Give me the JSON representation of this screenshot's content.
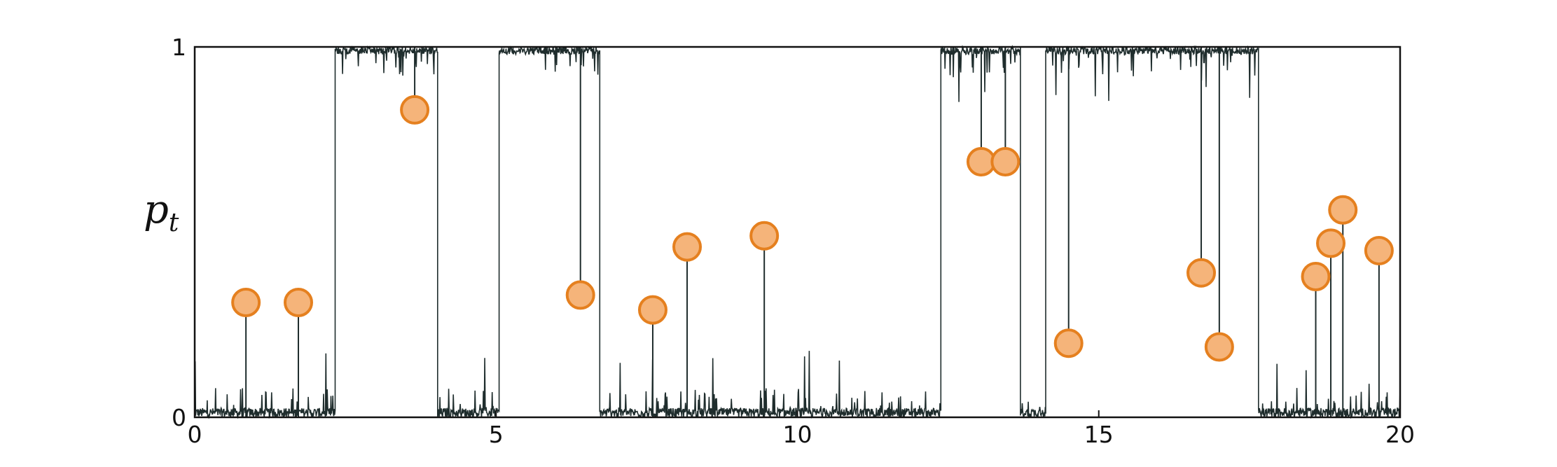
{
  "chart_data": {
    "type": "line",
    "title": "",
    "xlabel": "",
    "ylabel": "p",
    "ylabel_subscript": "t",
    "xlim": [
      0,
      20
    ],
    "ylim": [
      0,
      1
    ],
    "xticks": [
      0,
      5,
      10,
      15,
      20
    ],
    "xtick_labels": [
      "0",
      "5",
      "10",
      "15",
      "20"
    ],
    "yticks": [
      0,
      1
    ],
    "ytick_labels": [
      "0",
      "1"
    ],
    "grid": false,
    "colors": {
      "line": "#1f2d2d",
      "marker_fill": "#f5b47a",
      "marker_edge": "#e5801f"
    },
    "segments": [
      {
        "x_start": 0.0,
        "x_end": 2.33,
        "level": "low"
      },
      {
        "x_start": 2.33,
        "x_end": 4.03,
        "level": "high"
      },
      {
        "x_start": 4.03,
        "x_end": 5.05,
        "level": "low"
      },
      {
        "x_start": 5.05,
        "x_end": 6.72,
        "level": "high"
      },
      {
        "x_start": 6.72,
        "x_end": 12.38,
        "level": "low"
      },
      {
        "x_start": 12.38,
        "x_end": 13.7,
        "level": "high"
      },
      {
        "x_start": 13.7,
        "x_end": 14.12,
        "level": "low"
      },
      {
        "x_start": 14.12,
        "x_end": 17.65,
        "level": "high"
      },
      {
        "x_start": 17.65,
        "x_end": 20.0,
        "level": "low"
      }
    ],
    "markers": [
      {
        "x": 0.85,
        "y": 0.31
      },
      {
        "x": 1.72,
        "y": 0.31
      },
      {
        "x": 3.65,
        "y": 0.83
      },
      {
        "x": 6.4,
        "y": 0.33
      },
      {
        "x": 7.6,
        "y": 0.29
      },
      {
        "x": 8.17,
        "y": 0.46
      },
      {
        "x": 9.45,
        "y": 0.49
      },
      {
        "x": 13.05,
        "y": 0.69
      },
      {
        "x": 13.45,
        "y": 0.69
      },
      {
        "x": 14.5,
        "y": 0.2
      },
      {
        "x": 16.7,
        "y": 0.39
      },
      {
        "x": 17.0,
        "y": 0.19
      },
      {
        "x": 18.6,
        "y": 0.38
      },
      {
        "x": 18.85,
        "y": 0.47
      },
      {
        "x": 19.05,
        "y": 0.56
      },
      {
        "x": 19.65,
        "y": 0.45
      }
    ]
  }
}
